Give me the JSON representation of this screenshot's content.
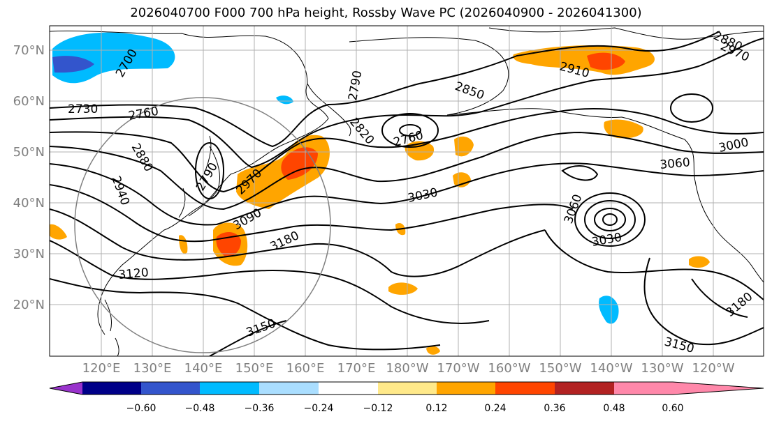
{
  "title": "2026040700 F000 700 hPa height, Rossby Wave PC (2026040900 - 2026041300)",
  "lat_labels": [
    "70°N",
    "60°N",
    "50°N",
    "40°N",
    "30°N",
    "20°N"
  ],
  "lon_labels": [
    "120°E",
    "130°E",
    "140°E",
    "150°E",
    "160°E",
    "170°E",
    "180°W",
    "170°W",
    "160°W",
    "150°W",
    "140°W",
    "130°W",
    "120°W"
  ],
  "contour_labels": [
    "2700",
    "2730",
    "2760",
    "2880",
    "2940",
    "2790",
    "2970",
    "3090",
    "3120",
    "3180",
    "3150",
    "2820",
    "2790",
    "2760",
    "2850",
    "2910",
    "2880",
    "2970",
    "3000",
    "3060",
    "3030",
    "3060",
    "3030",
    "3180",
    "3150"
  ],
  "colorbar": {
    "colors": [
      "#9933cc",
      "#000088",
      "#3355cc",
      "#00bbff",
      "#aadeff",
      "#ffffff",
      "#ffe98a",
      "#ffa500",
      "#ff4500",
      "#b22222",
      "#ff88aa"
    ],
    "ticks": [
      "−0.60",
      "−0.48",
      "−0.36",
      "−0.24",
      "−0.12",
      "0.12",
      "0.24",
      "0.36",
      "0.48",
      "0.60"
    ]
  }
}
